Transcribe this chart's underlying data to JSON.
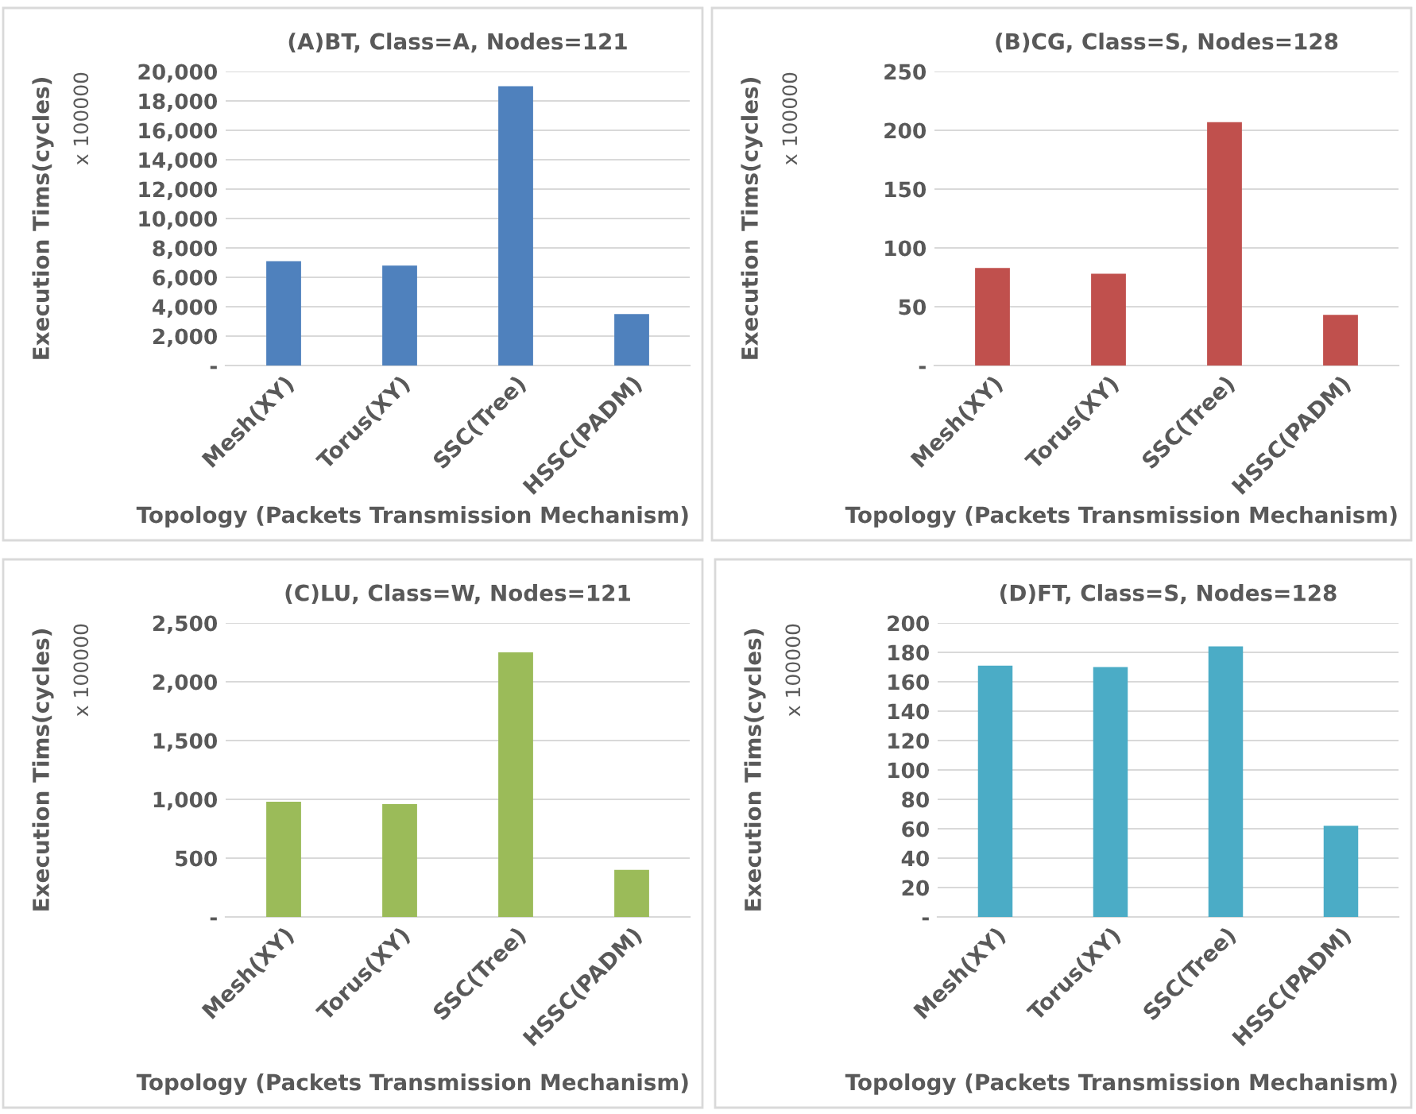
{
  "chart_data": [
    {
      "type": "bar",
      "title": "(A)BT, Class=A, Nodes=121",
      "xlabel": "Topology (Packets Transmission Mechanism)",
      "ylabel": "Execution Tims(cycles)",
      "annotations": [
        "x 100000"
      ],
      "categories": [
        "Mesh(XY)",
        "Torus(XY)",
        "SSC(Tree)",
        "HSSC(PADM)"
      ],
      "values": [
        7100,
        6800,
        19000,
        3500
      ],
      "color": "#4f81bd",
      "ylim": [
        0,
        20000
      ],
      "yticks": [
        {
          "value": 0,
          "label": "-"
        },
        {
          "value": 2000,
          "label": "2,000"
        },
        {
          "value": 4000,
          "label": "4,000"
        },
        {
          "value": 6000,
          "label": "6,000"
        },
        {
          "value": 8000,
          "label": "8,000"
        },
        {
          "value": 10000,
          "label": "10,000"
        },
        {
          "value": 12000,
          "label": "12,000"
        },
        {
          "value": 14000,
          "label": "14,000"
        },
        {
          "value": 16000,
          "label": "16,000"
        },
        {
          "value": 18000,
          "label": "18,000"
        },
        {
          "value": 20000,
          "label": "20,000"
        }
      ],
      "grid": "y"
    },
    {
      "type": "bar",
      "title": "(B)CG, Class=S, Nodes=128",
      "xlabel": "Topology (Packets Transmission Mechanism)",
      "ylabel": "Execution Tims(cycles)",
      "annotations": [
        "x 100000"
      ],
      "categories": [
        "Mesh(XY)",
        "Torus(XY)",
        "SSC(Tree)",
        "HSSC(PADM)"
      ],
      "values": [
        83,
        78,
        207,
        43
      ],
      "color": "#c0504d",
      "ylim": [
        0,
        250
      ],
      "yticks": [
        {
          "value": 0,
          "label": "-"
        },
        50,
        100,
        150,
        200,
        250
      ],
      "grid": "y"
    },
    {
      "type": "bar",
      "title": "(C)LU, Class=W, Nodes=121",
      "xlabel": "Topology (Packets Transmission Mechanism)",
      "ylabel": "Execution Tims(cycles)",
      "annotations": [
        "x 100000"
      ],
      "categories": [
        "Mesh(XY)",
        "Torus(XY)",
        "SSC(Tree)",
        "HSSC(PADM)"
      ],
      "values": [
        980,
        960,
        2250,
        400
      ],
      "color": "#9bbb59",
      "ylim": [
        0,
        2500
      ],
      "yticks": [
        {
          "value": 0,
          "label": "-"
        },
        500,
        {
          "value": 1000,
          "label": "1,000"
        },
        {
          "value": 1500,
          "label": "1,500"
        },
        {
          "value": 2000,
          "label": "2,000"
        },
        {
          "value": 2500,
          "label": "2,500"
        }
      ],
      "grid": "y"
    },
    {
      "type": "bar",
      "title": "(D)FT, Class=S, Nodes=128",
      "xlabel": "Topology (Packets Transmission Mechanism)",
      "ylabel": "Execution Tims(cycles)",
      "annotations": [
        "x 100000"
      ],
      "categories": [
        "Mesh(XY)",
        "Torus(XY)",
        "SSC(Tree)",
        "HSSC(PADM)"
      ],
      "values": [
        171,
        170,
        184,
        62
      ],
      "color": "#4bacc6",
      "ylim": [
        0,
        200
      ],
      "yticks": [
        {
          "value": 0,
          "label": "-"
        },
        20,
        40,
        60,
        80,
        100,
        120,
        140,
        160,
        180,
        200
      ],
      "grid": "y"
    }
  ]
}
